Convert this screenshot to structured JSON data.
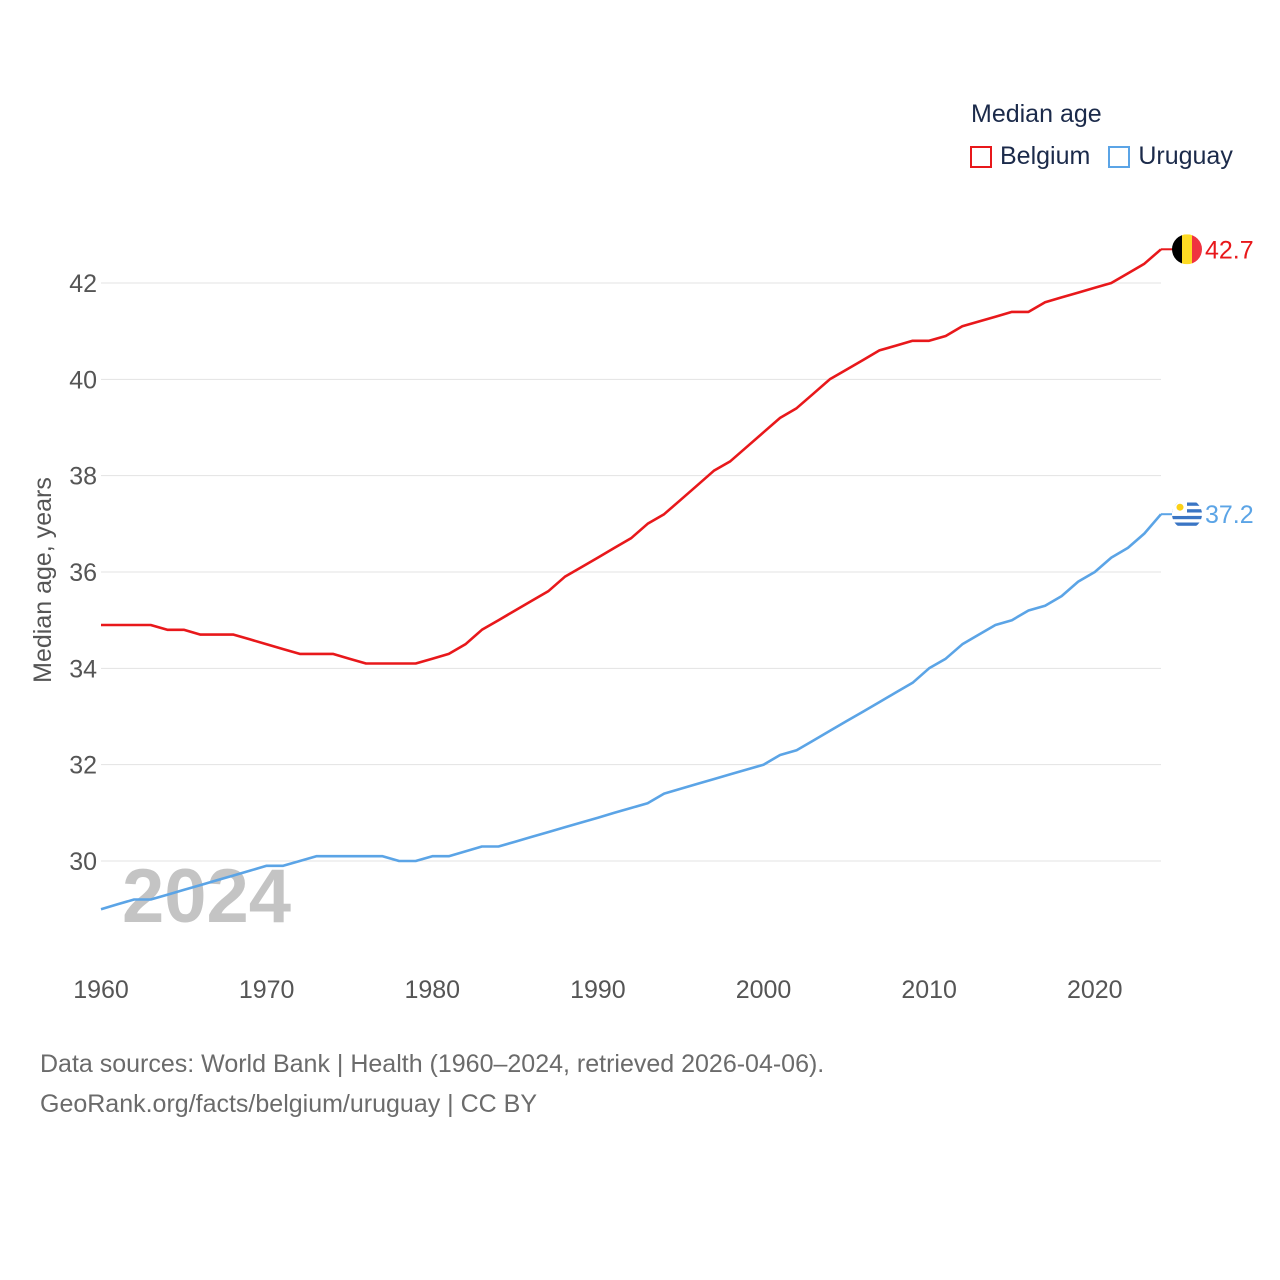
{
  "legend": {
    "title": "Median age",
    "items": [
      {
        "label": "Belgium",
        "color": "#e8181b"
      },
      {
        "label": "Uruguay",
        "color": "#5ba4e6"
      }
    ]
  },
  "year_watermark": "2024",
  "footer": {
    "line1": "Data sources: World Bank | Health (1960–2024, retrieved 2026-04-06).",
    "line2": "GeoRank.org/facts/belgium/uruguay | CC BY"
  },
  "flags": [
    {
      "country": "Belgium",
      "icon": "belgium-flag-icon"
    },
    {
      "country": "Uruguay",
      "icon": "uruguay-flag-icon"
    }
  ],
  "chart_data": {
    "type": "line",
    "title": "",
    "xlabel": "",
    "ylabel": "Median age, years",
    "xlim": [
      1960,
      2024
    ],
    "ylim": [
      28,
      43.5
    ],
    "yticks": [
      30,
      32,
      34,
      36,
      38,
      40,
      42
    ],
    "xticks": [
      1960,
      1970,
      1980,
      1990,
      2000,
      2010,
      2020
    ],
    "grid": true,
    "x": [
      1960,
      1961,
      1962,
      1963,
      1964,
      1965,
      1966,
      1967,
      1968,
      1969,
      1970,
      1971,
      1972,
      1973,
      1974,
      1975,
      1976,
      1977,
      1978,
      1979,
      1980,
      1981,
      1982,
      1983,
      1984,
      1985,
      1986,
      1987,
      1988,
      1989,
      1990,
      1991,
      1992,
      1993,
      1994,
      1995,
      1996,
      1997,
      1998,
      1999,
      2000,
      2001,
      2002,
      2003,
      2004,
      2005,
      2006,
      2007,
      2008,
      2009,
      2010,
      2011,
      2012,
      2013,
      2014,
      2015,
      2016,
      2017,
      2018,
      2019,
      2020,
      2021,
      2022,
      2023,
      2024
    ],
    "series": [
      {
        "name": "Belgium",
        "color": "#e8181b",
        "end_label": "42.7",
        "values": [
          34.9,
          34.9,
          34.9,
          34.9,
          34.8,
          34.8,
          34.7,
          34.7,
          34.7,
          34.6,
          34.5,
          34.4,
          34.3,
          34.3,
          34.3,
          34.2,
          34.1,
          34.1,
          34.1,
          34.1,
          34.2,
          34.3,
          34.5,
          34.8,
          35.0,
          35.2,
          35.4,
          35.6,
          35.9,
          36.1,
          36.3,
          36.5,
          36.7,
          37.0,
          37.2,
          37.5,
          37.8,
          38.1,
          38.3,
          38.6,
          38.9,
          39.2,
          39.4,
          39.7,
          40.0,
          40.2,
          40.4,
          40.6,
          40.7,
          40.8,
          40.8,
          40.9,
          41.1,
          41.2,
          41.3,
          41.4,
          41.4,
          41.6,
          41.7,
          41.8,
          41.9,
          42.0,
          42.2,
          42.4,
          42.7
        ]
      },
      {
        "name": "Uruguay",
        "color": "#5ba4e6",
        "end_label": "37.2",
        "values": [
          29.0,
          29.1,
          29.2,
          29.2,
          29.3,
          29.4,
          29.5,
          29.6,
          29.7,
          29.8,
          29.9,
          29.9,
          30.0,
          30.1,
          30.1,
          30.1,
          30.1,
          30.1,
          30.0,
          30.0,
          30.1,
          30.1,
          30.2,
          30.3,
          30.3,
          30.4,
          30.5,
          30.6,
          30.7,
          30.8,
          30.9,
          31.0,
          31.1,
          31.2,
          31.4,
          31.5,
          31.6,
          31.7,
          31.8,
          31.9,
          32.0,
          32.2,
          32.3,
          32.5,
          32.7,
          32.9,
          33.1,
          33.3,
          33.5,
          33.7,
          34.0,
          34.2,
          34.5,
          34.7,
          34.9,
          35.0,
          35.2,
          35.3,
          35.5,
          35.8,
          36.0,
          36.3,
          36.5,
          36.8,
          37.2
        ]
      }
    ]
  }
}
